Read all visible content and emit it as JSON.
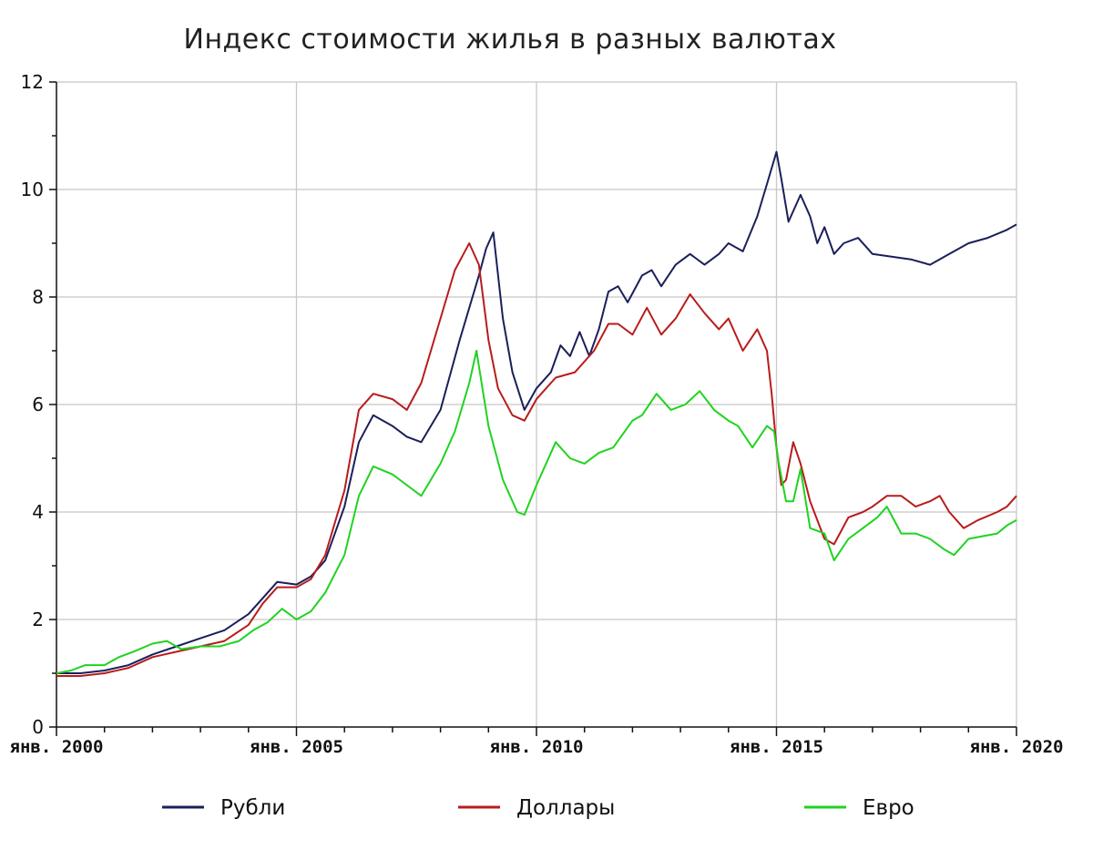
{
  "chart_data": {
    "type": "line",
    "title": "Индекс стоимости жилья в разных валютах",
    "xlabel": "",
    "ylabel": "",
    "xlim": [
      2000,
      2020
    ],
    "ylim": [
      0,
      12
    ],
    "y_ticks": [
      0,
      2,
      4,
      6,
      8,
      10,
      12
    ],
    "y_tick_labels": [
      "0",
      "2",
      "4",
      "6",
      "8",
      "10",
      "12"
    ],
    "x_ticks": [
      2000,
      2005,
      2010,
      2015,
      2020
    ],
    "x_tick_labels": [
      "янв. 2000",
      "янв. 2005",
      "янв. 2010",
      "янв. 2015",
      "янв. 2020"
    ],
    "grid": true,
    "legend_position": "bottom",
    "series": [
      {
        "name": "Рубли",
        "color": "#1a1f5a",
        "x": [
          2000.0,
          2000.5,
          2001.0,
          2001.5,
          2002.0,
          2002.5,
          2003.0,
          2003.5,
          2004.0,
          2004.3,
          2004.6,
          2005.0,
          2005.3,
          2005.6,
          2006.0,
          2006.3,
          2006.6,
          2007.0,
          2007.3,
          2007.6,
          2008.0,
          2008.4,
          2008.8,
          2008.95,
          2009.1,
          2009.3,
          2009.5,
          2009.75,
          2010.0,
          2010.3,
          2010.5,
          2010.7,
          2010.9,
          2011.1,
          2011.3,
          2011.5,
          2011.7,
          2011.9,
          2012.2,
          2012.4,
          2012.6,
          2012.9,
          2013.2,
          2013.5,
          2013.8,
          2014.0,
          2014.3,
          2014.6,
          2014.8,
          2015.0,
          2015.1,
          2015.25,
          2015.5,
          2015.7,
          2015.85,
          2016.0,
          2016.2,
          2016.4,
          2016.7,
          2017.0,
          2017.4,
          2017.8,
          2018.2,
          2018.6,
          2019.0,
          2019.4,
          2019.8,
          2020.0
        ],
        "values": [
          1.0,
          1.0,
          1.05,
          1.15,
          1.35,
          1.5,
          1.65,
          1.8,
          2.1,
          2.4,
          2.7,
          2.65,
          2.8,
          3.1,
          4.1,
          5.3,
          5.8,
          5.6,
          5.4,
          5.3,
          5.9,
          7.2,
          8.4,
          8.9,
          9.2,
          7.6,
          6.6,
          5.9,
          6.3,
          6.6,
          7.1,
          6.9,
          7.35,
          6.9,
          7.4,
          8.1,
          8.2,
          7.9,
          8.4,
          8.5,
          8.2,
          8.6,
          8.8,
          8.6,
          8.8,
          9.0,
          8.85,
          9.5,
          10.1,
          10.7,
          10.2,
          9.4,
          9.9,
          9.5,
          9.0,
          9.3,
          8.8,
          9.0,
          9.1,
          8.8,
          8.75,
          8.7,
          8.6,
          8.8,
          9.0,
          9.1,
          9.25,
          9.35
        ]
      },
      {
        "name": "Доллары",
        "color": "#b81c1c",
        "x": [
          2000.0,
          2000.5,
          2001.0,
          2001.5,
          2002.0,
          2002.5,
          2003.0,
          2003.5,
          2004.0,
          2004.3,
          2004.6,
          2005.0,
          2005.3,
          2005.6,
          2006.0,
          2006.3,
          2006.6,
          2007.0,
          2007.3,
          2007.6,
          2008.0,
          2008.3,
          2008.6,
          2008.8,
          2009.0,
          2009.2,
          2009.5,
          2009.75,
          2010.0,
          2010.4,
          2010.8,
          2011.2,
          2011.5,
          2011.7,
          2012.0,
          2012.3,
          2012.6,
          2012.9,
          2013.2,
          2013.5,
          2013.8,
          2014.0,
          2014.3,
          2014.6,
          2014.8,
          2014.9,
          2015.0,
          2015.1,
          2015.2,
          2015.35,
          2015.5,
          2015.7,
          2016.0,
          2016.2,
          2016.5,
          2016.8,
          2017.0,
          2017.3,
          2017.6,
          2017.9,
          2018.2,
          2018.4,
          2018.6,
          2018.9,
          2019.2,
          2019.6,
          2019.8,
          2020.0
        ],
        "values": [
          0.95,
          0.95,
          1.0,
          1.1,
          1.3,
          1.4,
          1.5,
          1.6,
          1.9,
          2.3,
          2.6,
          2.6,
          2.75,
          3.2,
          4.4,
          5.9,
          6.2,
          6.1,
          5.9,
          6.4,
          7.6,
          8.5,
          9.0,
          8.6,
          7.2,
          6.3,
          5.8,
          5.7,
          6.1,
          6.5,
          6.6,
          7.0,
          7.5,
          7.5,
          7.3,
          7.8,
          7.3,
          7.6,
          8.05,
          7.7,
          7.4,
          7.6,
          7.0,
          7.4,
          7.0,
          6.2,
          5.2,
          4.5,
          4.6,
          5.3,
          4.9,
          4.2,
          3.5,
          3.4,
          3.9,
          4.0,
          4.1,
          4.3,
          4.3,
          4.1,
          4.2,
          4.3,
          4.0,
          3.7,
          3.85,
          4.0,
          4.1,
          4.3
        ]
      },
      {
        "name": "Евро",
        "color": "#1fd31f",
        "x": [
          2000.0,
          2000.3,
          2000.6,
          2001.0,
          2001.3,
          2001.6,
          2002.0,
          2002.3,
          2002.6,
          2003.0,
          2003.4,
          2003.8,
          2004.1,
          2004.4,
          2004.7,
          2005.0,
          2005.3,
          2005.6,
          2006.0,
          2006.3,
          2006.6,
          2007.0,
          2007.3,
          2007.6,
          2008.0,
          2008.3,
          2008.6,
          2008.75,
          2009.0,
          2009.3,
          2009.6,
          2009.75,
          2010.0,
          2010.4,
          2010.7,
          2011.0,
          2011.3,
          2011.6,
          2012.0,
          2012.2,
          2012.5,
          2012.8,
          2013.1,
          2013.4,
          2013.7,
          2014.0,
          2014.2,
          2014.5,
          2014.8,
          2014.95,
          2015.05,
          2015.2,
          2015.35,
          2015.5,
          2015.7,
          2016.0,
          2016.2,
          2016.5,
          2016.8,
          2017.1,
          2017.3,
          2017.6,
          2017.9,
          2018.2,
          2018.5,
          2018.7,
          2019.0,
          2019.3,
          2019.6,
          2019.8,
          2020.0
        ],
        "values": [
          1.0,
          1.05,
          1.15,
          1.15,
          1.3,
          1.4,
          1.55,
          1.6,
          1.45,
          1.5,
          1.5,
          1.6,
          1.8,
          1.95,
          2.2,
          2.0,
          2.15,
          2.5,
          3.2,
          4.3,
          4.85,
          4.7,
          4.5,
          4.3,
          4.9,
          5.5,
          6.4,
          7.0,
          5.6,
          4.6,
          4.0,
          3.95,
          4.5,
          5.3,
          5.0,
          4.9,
          5.1,
          5.2,
          5.7,
          5.8,
          6.2,
          5.9,
          6.0,
          6.25,
          5.9,
          5.7,
          5.6,
          5.2,
          5.6,
          5.5,
          4.9,
          4.2,
          4.2,
          4.8,
          3.7,
          3.6,
          3.1,
          3.5,
          3.7,
          3.9,
          4.1,
          3.6,
          3.6,
          3.5,
          3.3,
          3.2,
          3.5,
          3.55,
          3.6,
          3.75,
          3.85
        ]
      }
    ]
  }
}
